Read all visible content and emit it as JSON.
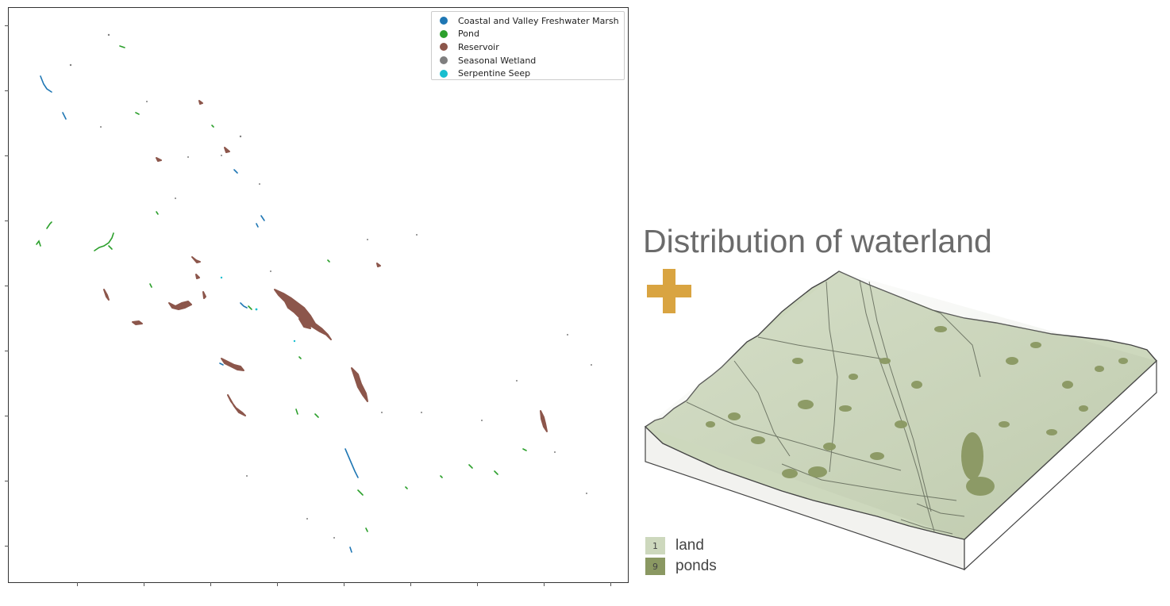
{
  "map_panel": {
    "legend": [
      {
        "label": "Coastal and Valley Freshwater Marsh",
        "color": "#1f77b4"
      },
      {
        "label": "Pond",
        "color": "#2ca02c"
      },
      {
        "label": "Reservoir",
        "color": "#8c564b"
      },
      {
        "label": "Seasonal Wetland",
        "color": "#7f7f7f"
      },
      {
        "label": "Serpentine Seep",
        "color": "#17becf"
      }
    ]
  },
  "illustration": {
    "title": "Distribution of waterland",
    "plus_icon": "plus-icon",
    "accent_color": "#d9a441",
    "land_color": "#cdd8bd",
    "pond_color": "#8a9862",
    "key": [
      {
        "value": "1",
        "label": "land",
        "color": "#cdd8bd"
      },
      {
        "value": "9",
        "label": "ponds",
        "color": "#8a9862"
      }
    ]
  }
}
